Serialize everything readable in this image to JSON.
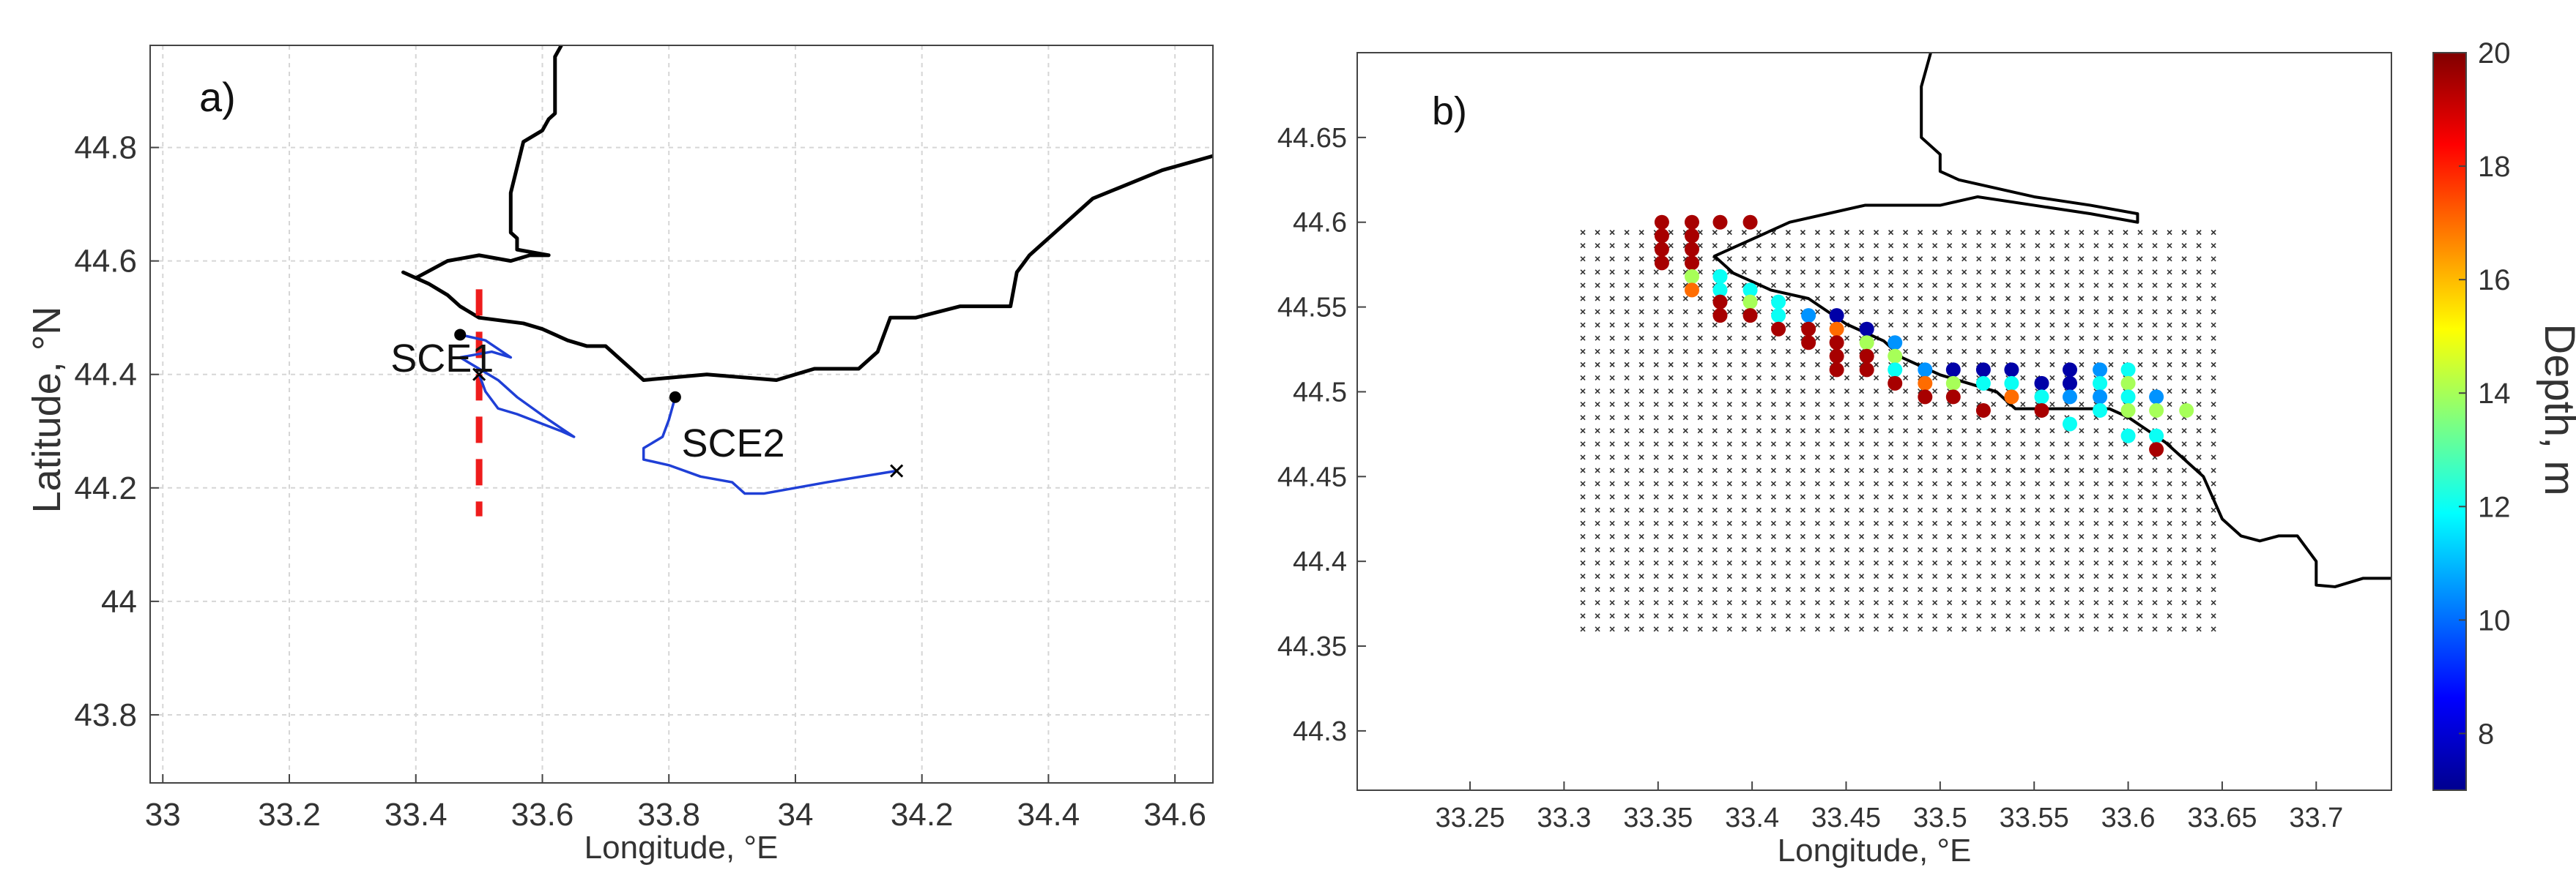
{
  "chart_data": [
    {
      "type": "line",
      "panel_label": "a)",
      "xlabel": "Longitude, °E",
      "ylabel": "Latitude, °N",
      "xlim": [
        32.98,
        34.66
      ],
      "ylim": [
        43.68,
        44.98
      ],
      "xticks": [
        33,
        33.2,
        33.4,
        33.6,
        33.8,
        34,
        34.2,
        34.4,
        34.6
      ],
      "xtick_labels": [
        "33",
        "33.2",
        "33.4",
        "33.6",
        "33.8",
        "34",
        "34.2",
        "34.4",
        "34.6"
      ],
      "yticks": [
        43.8,
        44,
        44.2,
        44.4,
        44.6,
        44.8
      ],
      "ytick_labels": [
        "43.8",
        "44",
        "44.2",
        "44.4",
        "44.6",
        "44.8"
      ],
      "grid": true,
      "coastline": {
        "color": "#000000",
        "points": [
          [
            34.66,
            44.785
          ],
          [
            34.58,
            44.76
          ],
          [
            34.47,
            44.71
          ],
          [
            34.37,
            44.61
          ],
          [
            34.35,
            44.58
          ],
          [
            34.34,
            44.52
          ],
          [
            34.26,
            44.52
          ],
          [
            34.19,
            44.5
          ],
          [
            34.15,
            44.5
          ],
          [
            34.13,
            44.44
          ],
          [
            34.1,
            44.41
          ],
          [
            34.03,
            44.41
          ],
          [
            33.97,
            44.39
          ],
          [
            33.86,
            44.4
          ],
          [
            33.76,
            44.39
          ],
          [
            33.72,
            44.43
          ],
          [
            33.7,
            44.45
          ],
          [
            33.67,
            44.45
          ],
          [
            33.64,
            44.46
          ],
          [
            33.6,
            44.48
          ],
          [
            33.57,
            44.49
          ],
          [
            33.5,
            44.5
          ],
          [
            33.47,
            44.52
          ],
          [
            33.45,
            44.54
          ],
          [
            33.42,
            44.56
          ],
          [
            33.38,
            44.58
          ],
          [
            33.4,
            44.57
          ],
          [
            33.45,
            44.6
          ],
          [
            33.5,
            44.61
          ],
          [
            33.55,
            44.6
          ],
          [
            33.58,
            44.61
          ],
          [
            33.61,
            44.61
          ],
          [
            33.56,
            44.62
          ],
          [
            33.56,
            44.64
          ],
          [
            33.55,
            44.65
          ],
          [
            33.55,
            44.72
          ],
          [
            33.57,
            44.81
          ],
          [
            33.6,
            44.83
          ],
          [
            33.61,
            44.85
          ],
          [
            33.62,
            44.86
          ],
          [
            33.62,
            44.96
          ],
          [
            33.63,
            44.98
          ]
        ]
      },
      "series": [
        {
          "name": "SCE1",
          "color": "#1f3fd6",
          "start_marker": "dot",
          "end_marker": "x",
          "points": [
            [
              33.47,
              44.47
            ],
            [
              33.51,
              44.46
            ],
            [
              33.53,
              44.445
            ],
            [
              33.55,
              44.43
            ],
            [
              33.52,
              44.44
            ],
            [
              33.47,
              44.43
            ],
            [
              33.53,
              44.39
            ],
            [
              33.56,
              44.36
            ],
            [
              33.61,
              44.32
            ],
            [
              33.65,
              44.29
            ],
            [
              33.63,
              44.3
            ],
            [
              33.56,
              44.33
            ],
            [
              33.53,
              44.34
            ],
            [
              33.51,
              44.37
            ],
            [
              33.5,
              44.4
            ]
          ]
        },
        {
          "name": "SCE2",
          "color": "#1f3fd6",
          "start_marker": "dot",
          "end_marker": "x",
          "points": [
            [
              33.81,
              44.36
            ],
            [
              33.8,
              44.32
            ],
            [
              33.79,
              44.29
            ],
            [
              33.76,
              44.27
            ],
            [
              33.76,
              44.25
            ],
            [
              33.8,
              44.24
            ],
            [
              33.85,
              44.22
            ],
            [
              33.9,
              44.21
            ],
            [
              33.92,
              44.19
            ],
            [
              33.95,
              44.19
            ],
            [
              34.05,
              44.21
            ],
            [
              34.16,
              44.23
            ]
          ]
        }
      ],
      "annotations": [
        {
          "text": "SCE1",
          "x": 33.36,
          "y": 44.405
        },
        {
          "text": "SCE2",
          "x": 33.82,
          "y": 44.255
        }
      ],
      "dashed_line": {
        "x": 33.5,
        "y_from": 44.15,
        "y_to": 44.55,
        "color": "#ee1c1c"
      }
    },
    {
      "type": "scatter",
      "panel_label": "b)",
      "xlabel": "Longitude, °E",
      "ylabel": "",
      "xlim": [
        33.19,
        33.74
      ],
      "ylim": [
        44.265,
        44.7
      ],
      "xticks": [
        33.25,
        33.3,
        33.35,
        33.4,
        33.45,
        33.5,
        33.55,
        33.6,
        33.65,
        33.7
      ],
      "xtick_labels": [
        "33.25",
        "33.3",
        "33.35",
        "33.4",
        "33.45",
        "33.5",
        "33.55",
        "33.6",
        "33.65",
        "33.7"
      ],
      "yticks": [
        44.3,
        44.35,
        44.4,
        44.45,
        44.5,
        44.55,
        44.6,
        44.65
      ],
      "ytick_labels": [
        "44.3",
        "44.35",
        "44.4",
        "44.45",
        "44.5",
        "44.55",
        "44.6",
        "44.65"
      ],
      "grid": false,
      "colorbar": {
        "label": "Depth, m",
        "range": [
          7,
          20
        ],
        "ticks": [
          8,
          10,
          12,
          14,
          16,
          18,
          20
        ],
        "tick_labels": [
          "8",
          "10",
          "12",
          "14",
          "16",
          "18",
          "20"
        ],
        "colormap": "jet"
      },
      "grid_points": {
        "marker": "x",
        "color": "#333333",
        "x_range": [
          33.31,
          33.647
        ],
        "y_range": [
          44.36,
          44.6
        ],
        "step_x": 0.0078,
        "step_y": 0.0078
      },
      "coastline": {
        "color": "#000000",
        "points": [
          [
            33.74,
            44.39
          ],
          [
            33.725,
            44.39
          ],
          [
            33.71,
            44.385
          ],
          [
            33.7,
            44.386
          ],
          [
            33.7,
            44.4
          ],
          [
            33.69,
            44.415
          ],
          [
            33.68,
            44.415
          ],
          [
            33.67,
            44.412
          ],
          [
            33.66,
            44.415
          ],
          [
            33.65,
            44.425
          ],
          [
            33.64,
            44.45
          ],
          [
            33.63,
            44.46
          ],
          [
            33.62,
            44.47
          ],
          [
            33.6,
            44.485
          ],
          [
            33.59,
            44.49
          ],
          [
            33.57,
            44.49
          ],
          [
            33.54,
            44.49
          ],
          [
            33.53,
            44.5
          ],
          [
            33.5,
            44.51
          ],
          [
            33.48,
            44.52
          ],
          [
            33.47,
            44.53
          ],
          [
            33.45,
            44.54
          ],
          [
            33.43,
            44.555
          ],
          [
            33.41,
            44.56
          ],
          [
            33.39,
            44.57
          ],
          [
            33.38,
            44.58
          ],
          [
            33.39,
            44.585
          ],
          [
            33.4,
            44.59
          ],
          [
            33.42,
            44.6
          ],
          [
            33.44,
            44.605
          ],
          [
            33.46,
            44.61
          ],
          [
            33.48,
            44.61
          ],
          [
            33.5,
            44.61
          ],
          [
            33.52,
            44.615
          ],
          [
            33.55,
            44.61
          ],
          [
            33.58,
            44.605
          ],
          [
            33.605,
            44.6
          ],
          [
            33.605,
            44.605
          ],
          [
            33.58,
            44.61
          ],
          [
            33.55,
            44.615
          ],
          [
            33.51,
            44.625
          ],
          [
            33.5,
            44.63
          ],
          [
            33.5,
            44.64
          ],
          [
            33.495,
            44.645
          ],
          [
            33.49,
            44.65
          ],
          [
            33.49,
            44.68
          ],
          [
            33.495,
            44.7
          ]
        ]
      },
      "points": [
        {
          "x": 33.352,
          "y": 44.6,
          "v": 19.5
        },
        {
          "x": 33.368,
          "y": 44.6,
          "v": 19.5
        },
        {
          "x": 33.383,
          "y": 44.6,
          "v": 19.5
        },
        {
          "x": 33.399,
          "y": 44.6,
          "v": 19.5
        },
        {
          "x": 33.352,
          "y": 44.592,
          "v": 19.5
        },
        {
          "x": 33.368,
          "y": 44.592,
          "v": 19.5
        },
        {
          "x": 33.352,
          "y": 44.584,
          "v": 19.5
        },
        {
          "x": 33.368,
          "y": 44.584,
          "v": 19.5
        },
        {
          "x": 33.352,
          "y": 44.576,
          "v": 19.5
        },
        {
          "x": 33.368,
          "y": 44.576,
          "v": 19.5
        },
        {
          "x": 33.368,
          "y": 44.568,
          "v": 14
        },
        {
          "x": 33.383,
          "y": 44.568,
          "v": 12
        },
        {
          "x": 33.368,
          "y": 44.56,
          "v": 17
        },
        {
          "x": 33.383,
          "y": 44.56,
          "v": 12
        },
        {
          "x": 33.399,
          "y": 44.56,
          "v": 12
        },
        {
          "x": 33.383,
          "y": 44.553,
          "v": 19.5
        },
        {
          "x": 33.399,
          "y": 44.553,
          "v": 14
        },
        {
          "x": 33.414,
          "y": 44.553,
          "v": 12
        },
        {
          "x": 33.383,
          "y": 44.545,
          "v": 19.5
        },
        {
          "x": 33.399,
          "y": 44.545,
          "v": 19.5
        },
        {
          "x": 33.414,
          "y": 44.545,
          "v": 12
        },
        {
          "x": 33.43,
          "y": 44.545,
          "v": 10.5
        },
        {
          "x": 33.445,
          "y": 44.545,
          "v": 7.5
        },
        {
          "x": 33.414,
          "y": 44.537,
          "v": 19.5
        },
        {
          "x": 33.43,
          "y": 44.537,
          "v": 19.5
        },
        {
          "x": 33.445,
          "y": 44.537,
          "v": 17
        },
        {
          "x": 33.461,
          "y": 44.537,
          "v": 7.5
        },
        {
          "x": 33.43,
          "y": 44.529,
          "v": 19.5
        },
        {
          "x": 33.445,
          "y": 44.529,
          "v": 19.5
        },
        {
          "x": 33.461,
          "y": 44.529,
          "v": 14
        },
        {
          "x": 33.476,
          "y": 44.529,
          "v": 10.5
        },
        {
          "x": 33.445,
          "y": 44.521,
          "v": 19.5
        },
        {
          "x": 33.461,
          "y": 44.521,
          "v": 19.5
        },
        {
          "x": 33.476,
          "y": 44.521,
          "v": 14
        },
        {
          "x": 33.445,
          "y": 44.513,
          "v": 19.5
        },
        {
          "x": 33.461,
          "y": 44.513,
          "v": 19.5
        },
        {
          "x": 33.476,
          "y": 44.513,
          "v": 12
        },
        {
          "x": 33.492,
          "y": 44.513,
          "v": 10.5
        },
        {
          "x": 33.507,
          "y": 44.513,
          "v": 7.5
        },
        {
          "x": 33.523,
          "y": 44.513,
          "v": 7.5
        },
        {
          "x": 33.538,
          "y": 44.513,
          "v": 7.5
        },
        {
          "x": 33.569,
          "y": 44.513,
          "v": 7.5
        },
        {
          "x": 33.585,
          "y": 44.513,
          "v": 10.5
        },
        {
          "x": 33.6,
          "y": 44.513,
          "v": 12
        },
        {
          "x": 33.476,
          "y": 44.505,
          "v": 19.5
        },
        {
          "x": 33.492,
          "y": 44.505,
          "v": 17
        },
        {
          "x": 33.507,
          "y": 44.505,
          "v": 14
        },
        {
          "x": 33.523,
          "y": 44.505,
          "v": 12
        },
        {
          "x": 33.538,
          "y": 44.505,
          "v": 12
        },
        {
          "x": 33.554,
          "y": 44.505,
          "v": 7.5
        },
        {
          "x": 33.569,
          "y": 44.505,
          "v": 7.5
        },
        {
          "x": 33.585,
          "y": 44.505,
          "v": 12
        },
        {
          "x": 33.6,
          "y": 44.505,
          "v": 14
        },
        {
          "x": 33.492,
          "y": 44.497,
          "v": 19.5
        },
        {
          "x": 33.507,
          "y": 44.497,
          "v": 19.5
        },
        {
          "x": 33.538,
          "y": 44.497,
          "v": 17
        },
        {
          "x": 33.554,
          "y": 44.497,
          "v": 12
        },
        {
          "x": 33.569,
          "y": 44.497,
          "v": 10.5
        },
        {
          "x": 33.585,
          "y": 44.497,
          "v": 10.5
        },
        {
          "x": 33.6,
          "y": 44.497,
          "v": 12
        },
        {
          "x": 33.615,
          "y": 44.497,
          "v": 10.5
        },
        {
          "x": 33.523,
          "y": 44.489,
          "v": 19.5
        },
        {
          "x": 33.554,
          "y": 44.489,
          "v": 19.5
        },
        {
          "x": 33.585,
          "y": 44.489,
          "v": 12
        },
        {
          "x": 33.6,
          "y": 44.489,
          "v": 14
        },
        {
          "x": 33.615,
          "y": 44.489,
          "v": 14
        },
        {
          "x": 33.631,
          "y": 44.489,
          "v": 14
        },
        {
          "x": 33.569,
          "y": 44.481,
          "v": 12
        },
        {
          "x": 33.6,
          "y": 44.474,
          "v": 12
        },
        {
          "x": 33.615,
          "y": 44.474,
          "v": 12
        },
        {
          "x": 33.615,
          "y": 44.466,
          "v": 19.5
        }
      ]
    }
  ]
}
